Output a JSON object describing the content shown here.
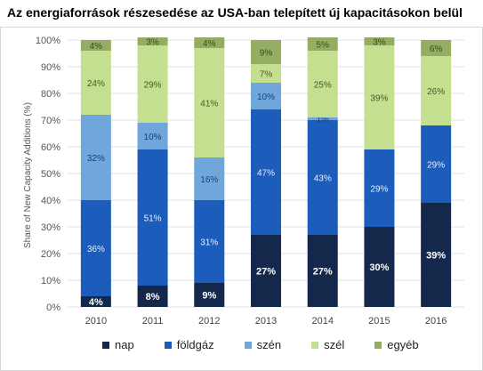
{
  "chart_data": {
    "type": "bar",
    "stacked": true,
    "title": "Az energiaforrások részesedése az USA-ban telepített új kapacitásokon belül",
    "ylabel": "Share of New Capacity Additions (%)",
    "xlabel": "",
    "ylim": [
      0,
      100
    ],
    "yticks": [
      "0%",
      "10%",
      "20%",
      "30%",
      "40%",
      "50%",
      "60%",
      "70%",
      "80%",
      "90%",
      "100%"
    ],
    "categories": [
      "2010",
      "2011",
      "2012",
      "2013",
      "2014",
      "2015",
      "2016"
    ],
    "series": [
      {
        "name": "nap",
        "color": "#13284a",
        "labelColor": "#ffffff",
        "values": [
          4,
          8,
          9,
          27,
          27,
          30,
          39
        ],
        "labels": [
          "4%",
          "8%",
          "9%",
          "27%",
          "27%",
          "30%",
          "39%"
        ]
      },
      {
        "name": "földgáz",
        "color": "#1c5cba",
        "labelColor": "#e6efff",
        "values": [
          36,
          51,
          31,
          47,
          43,
          29,
          29
        ],
        "labels": [
          "36%",
          "51%",
          "31%",
          "47%",
          "43%",
          "29%",
          "29%"
        ]
      },
      {
        "name": "szén",
        "color": "#6fa6dc",
        "labelColor": "#1c3f73",
        "values": [
          32,
          10,
          16,
          10,
          1,
          0,
          0
        ],
        "labels": [
          "32%",
          "10%",
          "16%",
          "10%",
          "1%",
          "",
          ""
        ]
      },
      {
        "name": "szél",
        "color": "#c3df8f",
        "labelColor": "#4a5a2a",
        "values": [
          24,
          29,
          41,
          7,
          25,
          39,
          26
        ],
        "labels": [
          "24%",
          "29%",
          "41%",
          "7%",
          "25%",
          "39%",
          "26%"
        ]
      },
      {
        "name": "egyéb",
        "color": "#94ad62",
        "labelColor": "#3a4a1c",
        "values": [
          4,
          3,
          4,
          9,
          5,
          3,
          6
        ],
        "labels": [
          "4%",
          "3%",
          "4%",
          "9%",
          "5%",
          "3%",
          "6%"
        ]
      }
    ],
    "grid": true,
    "legend_position": "bottom"
  }
}
